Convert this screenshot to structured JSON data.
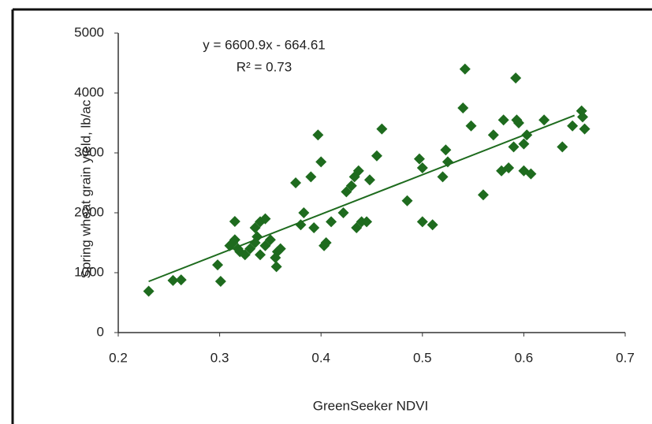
{
  "chart_data": {
    "type": "scatter",
    "x_label": "GreenSeeker NDVI",
    "y_label": "Spring wheat grain yield, lb/ac",
    "xlim": [
      0.2,
      0.7
    ],
    "xticks": [
      0.2,
      0.3,
      0.4,
      0.5,
      0.6,
      0.7
    ],
    "ylim": [
      0,
      5000
    ],
    "yticks": [
      0,
      1000,
      2000,
      3000,
      4000,
      5000
    ],
    "grid": false,
    "color": "#1e6b1e",
    "x": [
      0.23,
      0.254,
      0.262,
      0.298,
      0.301,
      0.315,
      0.31,
      0.315,
      0.318,
      0.313,
      0.32,
      0.325,
      0.33,
      0.335,
      0.337,
      0.34,
      0.345,
      0.335,
      0.34,
      0.345,
      0.35,
      0.355,
      0.356,
      0.36,
      0.357,
      0.375,
      0.38,
      0.383,
      0.39,
      0.393,
      0.397,
      0.4,
      0.405,
      0.403,
      0.41,
      0.422,
      0.425,
      0.43,
      0.433,
      0.435,
      0.437,
      0.44,
      0.445,
      0.448,
      0.455,
      0.46,
      0.485,
      0.497,
      0.5,
      0.5,
      0.51,
      0.52,
      0.523,
      0.525,
      0.54,
      0.542,
      0.548,
      0.56,
      0.57,
      0.578,
      0.58,
      0.585,
      0.59,
      0.592,
      0.593,
      0.595,
      0.6,
      0.6,
      0.603,
      0.607,
      0.62,
      0.638,
      0.648,
      0.657,
      0.658,
      0.66
    ],
    "values": [
      690,
      870,
      880,
      1130,
      855,
      1855,
      1450,
      1550,
      1400,
      1500,
      1350,
      1300,
      1400,
      1500,
      1600,
      1850,
      1900,
      1750,
      1300,
      1450,
      1550,
      1250,
      1100,
      1400,
      1350,
      2500,
      1800,
      2000,
      2600,
      1750,
      3300,
      2850,
      1500,
      1450,
      1850,
      2000,
      2350,
      2450,
      2600,
      1750,
      2700,
      1850,
      1850,
      2550,
      2950,
      3400,
      2200,
      2900,
      2750,
      1850,
      1800,
      2600,
      3050,
      2850,
      3750,
      4400,
      3450,
      2300,
      3300,
      2700,
      3550,
      2750,
      3100,
      4250,
      3550,
      3500,
      3150,
      2700,
      3300,
      2650,
      3550,
      3100,
      3450,
      3700,
      3600,
      3400
    ],
    "trendline": {
      "equation": "y = 6600.9x - 664.61",
      "r_squared": "R² = 0.73",
      "slope": 6600.9,
      "intercept": -664.61,
      "x": [
        0.23,
        0.65
      ]
    }
  }
}
